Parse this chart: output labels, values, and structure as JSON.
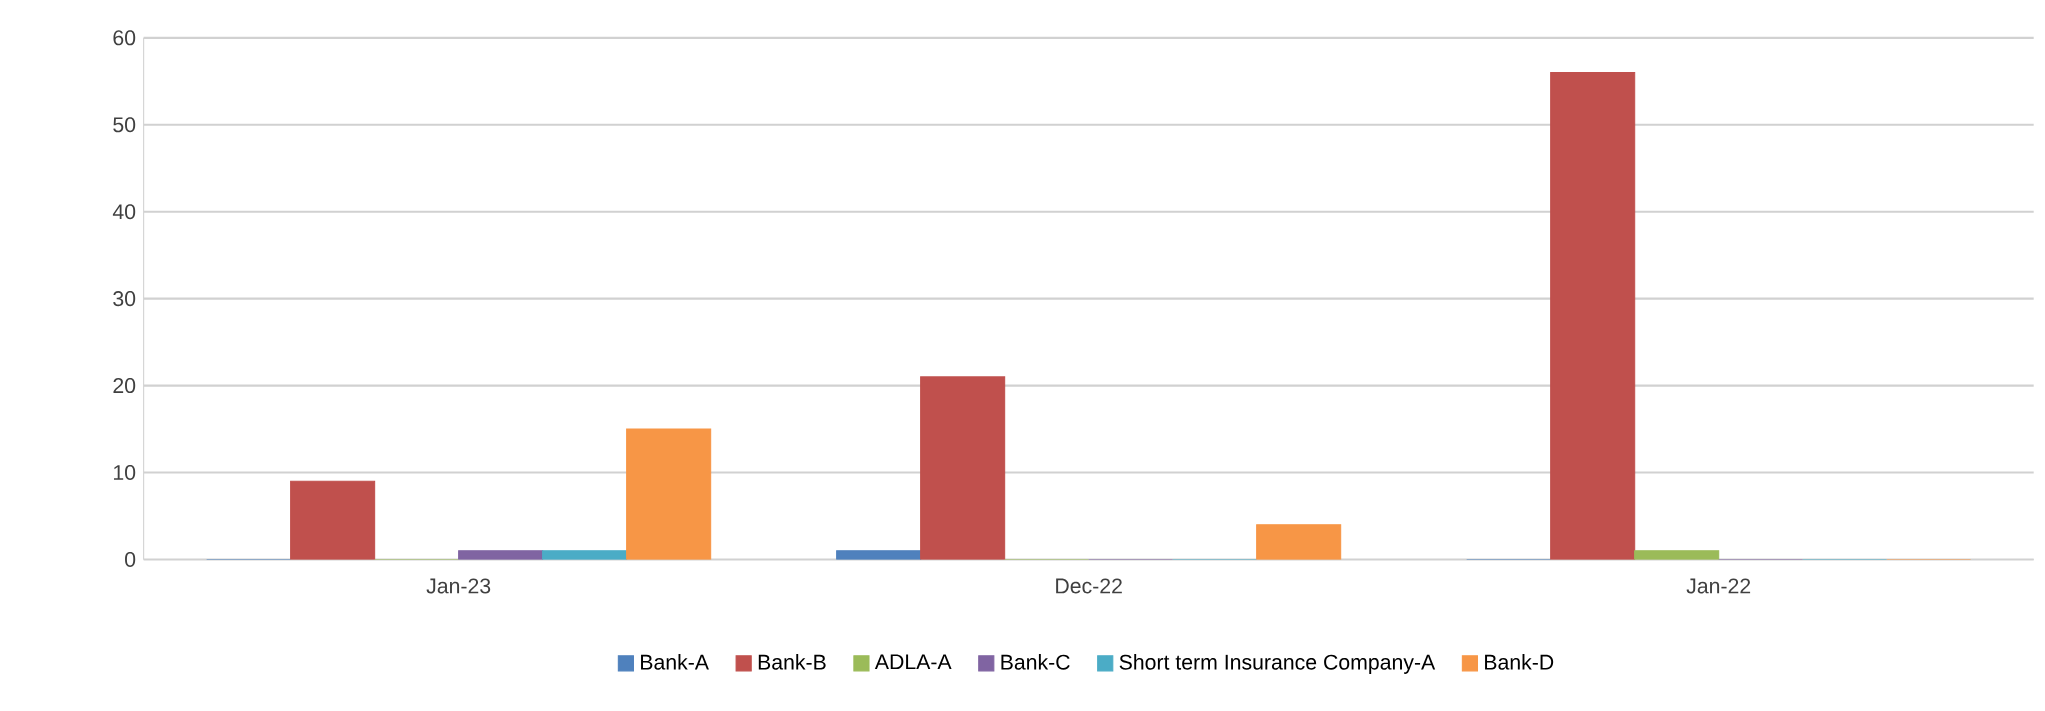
{
  "chart_data": {
    "type": "bar",
    "categories": [
      "Jan-23",
      "Dec-22",
      "Jan-22"
    ],
    "series": [
      {
        "name": "Bank-A",
        "color": "#4f81bd",
        "values": [
          0,
          1,
          0
        ]
      },
      {
        "name": "Bank-B",
        "color": "#c0504d",
        "values": [
          9,
          21,
          56
        ]
      },
      {
        "name": "ADLA-A",
        "color": "#9bbb59",
        "values": [
          0,
          0,
          1
        ]
      },
      {
        "name": "Bank-C",
        "color": "#8064a2",
        "values": [
          1,
          0,
          0
        ]
      },
      {
        "name": "Short term Insurance Company-A",
        "color": "#4bacc6",
        "values": [
          1,
          0,
          0
        ]
      },
      {
        "name": "Bank-D",
        "color": "#f79646",
        "values": [
          15,
          4,
          0
        ]
      }
    ],
    "ylim": [
      0,
      60
    ],
    "yticks": [
      0,
      10,
      20,
      30,
      40,
      50,
      60
    ],
    "grid": "y",
    "legend": "bottom"
  }
}
